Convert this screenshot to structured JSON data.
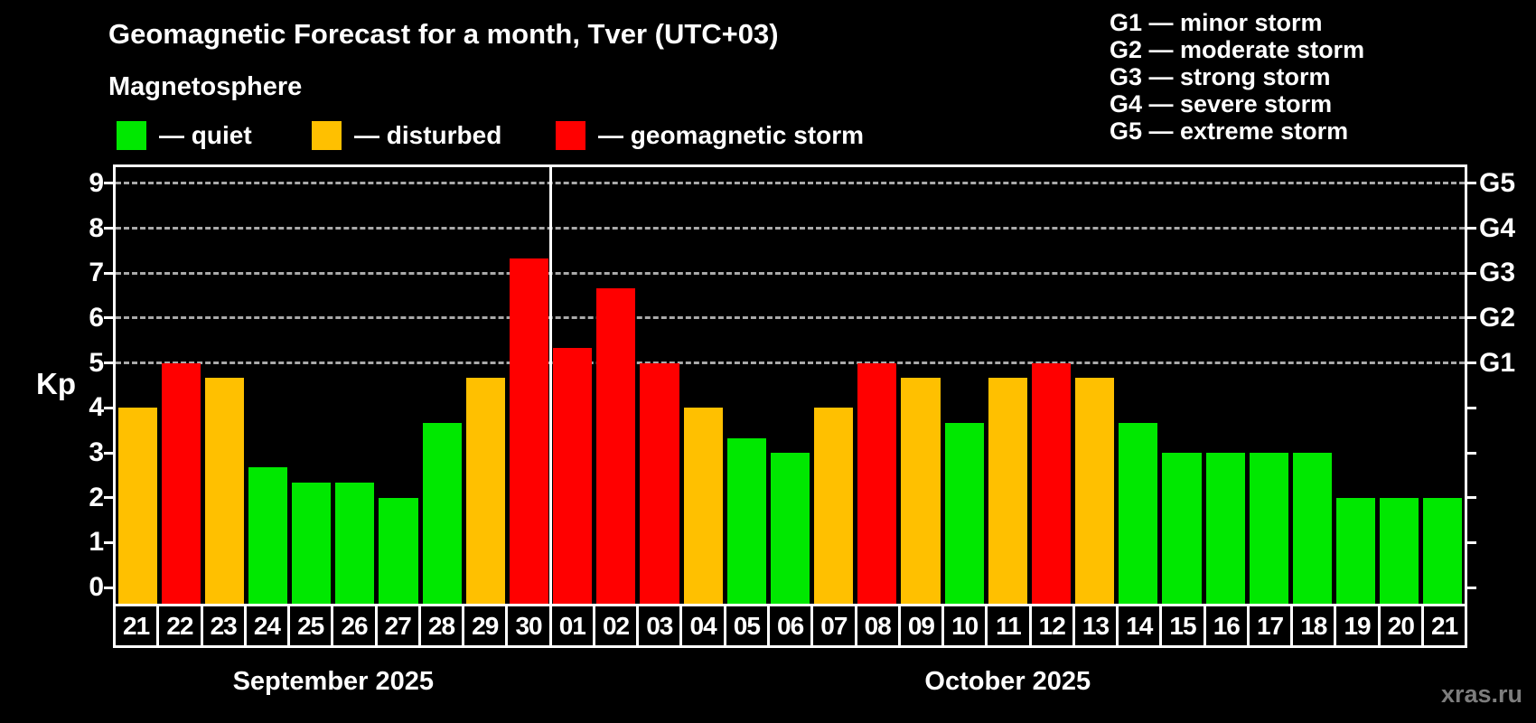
{
  "title": "Geomagnetic Forecast for a month, Tver (UTC+03)",
  "subtitle": "Magnetosphere",
  "legend": {
    "items": [
      {
        "key": "quiet",
        "label": "— quiet",
        "color": "#00e800"
      },
      {
        "key": "disturbed",
        "label": "— disturbed",
        "color": "#ffc000"
      },
      {
        "key": "storm",
        "label": "— geomagnetic storm",
        "color": "#ff0000"
      }
    ]
  },
  "g_legend": {
    "lines": [
      "G1 — minor storm",
      "G2 — moderate storm",
      "G3 — strong storm",
      "G4 — severe storm",
      "G5 — extreme storm"
    ]
  },
  "watermark": "xras.ru",
  "chart_data": {
    "type": "bar",
    "title": "Geomagnetic Forecast for a month, Tver (UTC+03)",
    "ylabel": "Kp",
    "xlabel": "",
    "ylim": [
      -0.36,
      9.36
    ],
    "yticks": [
      0,
      1,
      2,
      3,
      4,
      5,
      6,
      7,
      8,
      9
    ],
    "gridlines_at": [
      5,
      6,
      7,
      8,
      9
    ],
    "grid": "dashed-horizontal",
    "legend_position": "top-left",
    "right_axis": [
      {
        "kp": 5,
        "label": "G1"
      },
      {
        "kp": 6,
        "label": "G2"
      },
      {
        "kp": 7,
        "label": "G3"
      },
      {
        "kp": 8,
        "label": "G4"
      },
      {
        "kp": 9,
        "label": "G5"
      }
    ],
    "status_colors": {
      "quiet": "#00e800",
      "disturbed": "#ffc000",
      "storm": "#ff0000"
    },
    "month_labels": [
      "September 2025",
      "October 2025"
    ],
    "month_split_index": 10,
    "categories": [
      "21",
      "22",
      "23",
      "24",
      "25",
      "26",
      "27",
      "28",
      "29",
      "30",
      "01",
      "02",
      "03",
      "04",
      "05",
      "06",
      "07",
      "08",
      "09",
      "10",
      "11",
      "12",
      "13",
      "14",
      "15",
      "16",
      "17",
      "18",
      "19",
      "20",
      "21"
    ],
    "series": [
      {
        "name": "Kp forecast",
        "values": [
          4.0,
          5.0,
          4.67,
          2.67,
          2.33,
          2.33,
          2.0,
          3.67,
          4.67,
          7.33,
          5.33,
          6.67,
          5.0,
          4.0,
          3.33,
          3.0,
          4.0,
          5.0,
          4.67,
          3.67,
          4.67,
          5.0,
          4.67,
          3.67,
          3.0,
          3.0,
          3.0,
          3.0,
          2.0,
          2.0,
          2.0
        ],
        "statuses": [
          "disturbed",
          "storm",
          "disturbed",
          "quiet",
          "quiet",
          "quiet",
          "quiet",
          "quiet",
          "disturbed",
          "storm",
          "storm",
          "storm",
          "storm",
          "disturbed",
          "quiet",
          "quiet",
          "disturbed",
          "storm",
          "disturbed",
          "quiet",
          "disturbed",
          "storm",
          "disturbed",
          "quiet",
          "quiet",
          "quiet",
          "quiet",
          "quiet",
          "quiet",
          "quiet",
          "quiet"
        ]
      }
    ]
  }
}
